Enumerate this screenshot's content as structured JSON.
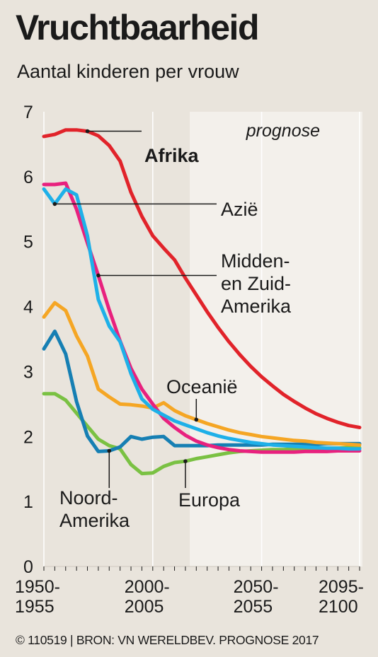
{
  "title": "Vruchtbaarheid",
  "subtitle": "Aantal kinderen per vrouw",
  "footer": "© 110519 | BRON: VN WERELDBEV. PROGNOSE 2017",
  "chart_data": {
    "type": "line",
    "ylim": [
      0,
      7
    ],
    "yticks": [
      0,
      1,
      2,
      3,
      4,
      5,
      6,
      7
    ],
    "x": [
      1950,
      1955,
      1960,
      1965,
      1970,
      1975,
      1980,
      1985,
      1990,
      1995,
      2000,
      2005,
      2010,
      2015,
      2020,
      2025,
      2030,
      2035,
      2040,
      2045,
      2050,
      2055,
      2060,
      2065,
      2070,
      2075,
      2080,
      2085,
      2090,
      2095
    ],
    "xlim": [
      1950,
      2095
    ],
    "xtick_labels": [
      {
        "x": 1950,
        "line1": "1950-",
        "line2": "1955"
      },
      {
        "x": 2000,
        "line1": "2000-",
        "line2": "2005"
      },
      {
        "x": 2050,
        "line1": "2050-",
        "line2": "2055"
      },
      {
        "x": 2095,
        "line1": "2095-",
        "line2": "2100"
      }
    ],
    "prognose_start": 2017,
    "prognose_label": "prognose",
    "series": [
      {
        "name": "Europa",
        "color": "#7ac143",
        "values": [
          2.66,
          2.66,
          2.56,
          2.36,
          2.16,
          1.96,
          1.86,
          1.81,
          1.57,
          1.43,
          1.44,
          1.54,
          1.6,
          1.62,
          1.66,
          1.69,
          1.72,
          1.75,
          1.77,
          1.78,
          1.79,
          1.8,
          1.8,
          1.81,
          1.81,
          1.82,
          1.82,
          1.82,
          1.83,
          1.83
        ]
      },
      {
        "name": "Noord-Amerika",
        "color": "#167fb3",
        "values": [
          3.35,
          3.62,
          3.27,
          2.54,
          2.01,
          1.77,
          1.78,
          1.84,
          2.0,
          1.96,
          1.99,
          2.0,
          1.86,
          1.86,
          1.86,
          1.86,
          1.87,
          1.87,
          1.87,
          1.87,
          1.87,
          1.88,
          1.88,
          1.88,
          1.88,
          1.88,
          1.89,
          1.89,
          1.89,
          1.89
        ]
      },
      {
        "name": "Oceanië",
        "color": "#f5a624",
        "values": [
          3.84,
          4.06,
          3.94,
          3.55,
          3.24,
          2.73,
          2.61,
          2.5,
          2.49,
          2.47,
          2.44,
          2.52,
          2.4,
          2.32,
          2.26,
          2.2,
          2.15,
          2.1,
          2.06,
          2.03,
          2.0,
          1.98,
          1.96,
          1.94,
          1.93,
          1.91,
          1.9,
          1.89,
          1.88,
          1.87
        ]
      },
      {
        "name": "Midden- en Zuid-Amerika",
        "color": "#e8217e",
        "values": [
          5.88,
          5.88,
          5.9,
          5.5,
          4.98,
          4.48,
          3.95,
          3.47,
          3.05,
          2.73,
          2.5,
          2.28,
          2.14,
          2.02,
          1.93,
          1.87,
          1.83,
          1.8,
          1.78,
          1.77,
          1.76,
          1.76,
          1.76,
          1.76,
          1.77,
          1.77,
          1.77,
          1.78,
          1.78,
          1.78
        ]
      },
      {
        "name": "Azië",
        "color": "#1eb0e8",
        "values": [
          5.81,
          5.58,
          5.81,
          5.72,
          5.09,
          4.11,
          3.7,
          3.46,
          2.97,
          2.58,
          2.42,
          2.33,
          2.24,
          2.18,
          2.12,
          2.06,
          2.01,
          1.97,
          1.94,
          1.91,
          1.89,
          1.87,
          1.86,
          1.85,
          1.84,
          1.83,
          1.82,
          1.82,
          1.81,
          1.81
        ]
      },
      {
        "name": "Afrika",
        "color": "#e1232a",
        "values": [
          6.62,
          6.65,
          6.72,
          6.72,
          6.7,
          6.63,
          6.48,
          6.24,
          5.76,
          5.39,
          5.09,
          4.9,
          4.72,
          4.44,
          4.18,
          3.92,
          3.68,
          3.46,
          3.26,
          3.08,
          2.92,
          2.78,
          2.65,
          2.54,
          2.44,
          2.35,
          2.28,
          2.22,
          2.17,
          2.14
        ]
      }
    ],
    "annotations": [
      {
        "series": "Afrika",
        "text": "Afrika",
        "bold": true
      },
      {
        "series": "Azië",
        "text": "Azië"
      },
      {
        "series": "Midden- en Zuid-Amerika",
        "lines": [
          "Midden-",
          "en Zuid-",
          "Amerika"
        ]
      },
      {
        "series": "Oceanië",
        "text": "Oceanië"
      },
      {
        "series": "Noord-Amerika",
        "lines": [
          "Noord-",
          "Amerika"
        ]
      },
      {
        "series": "Europa",
        "text": "Europa"
      }
    ]
  }
}
